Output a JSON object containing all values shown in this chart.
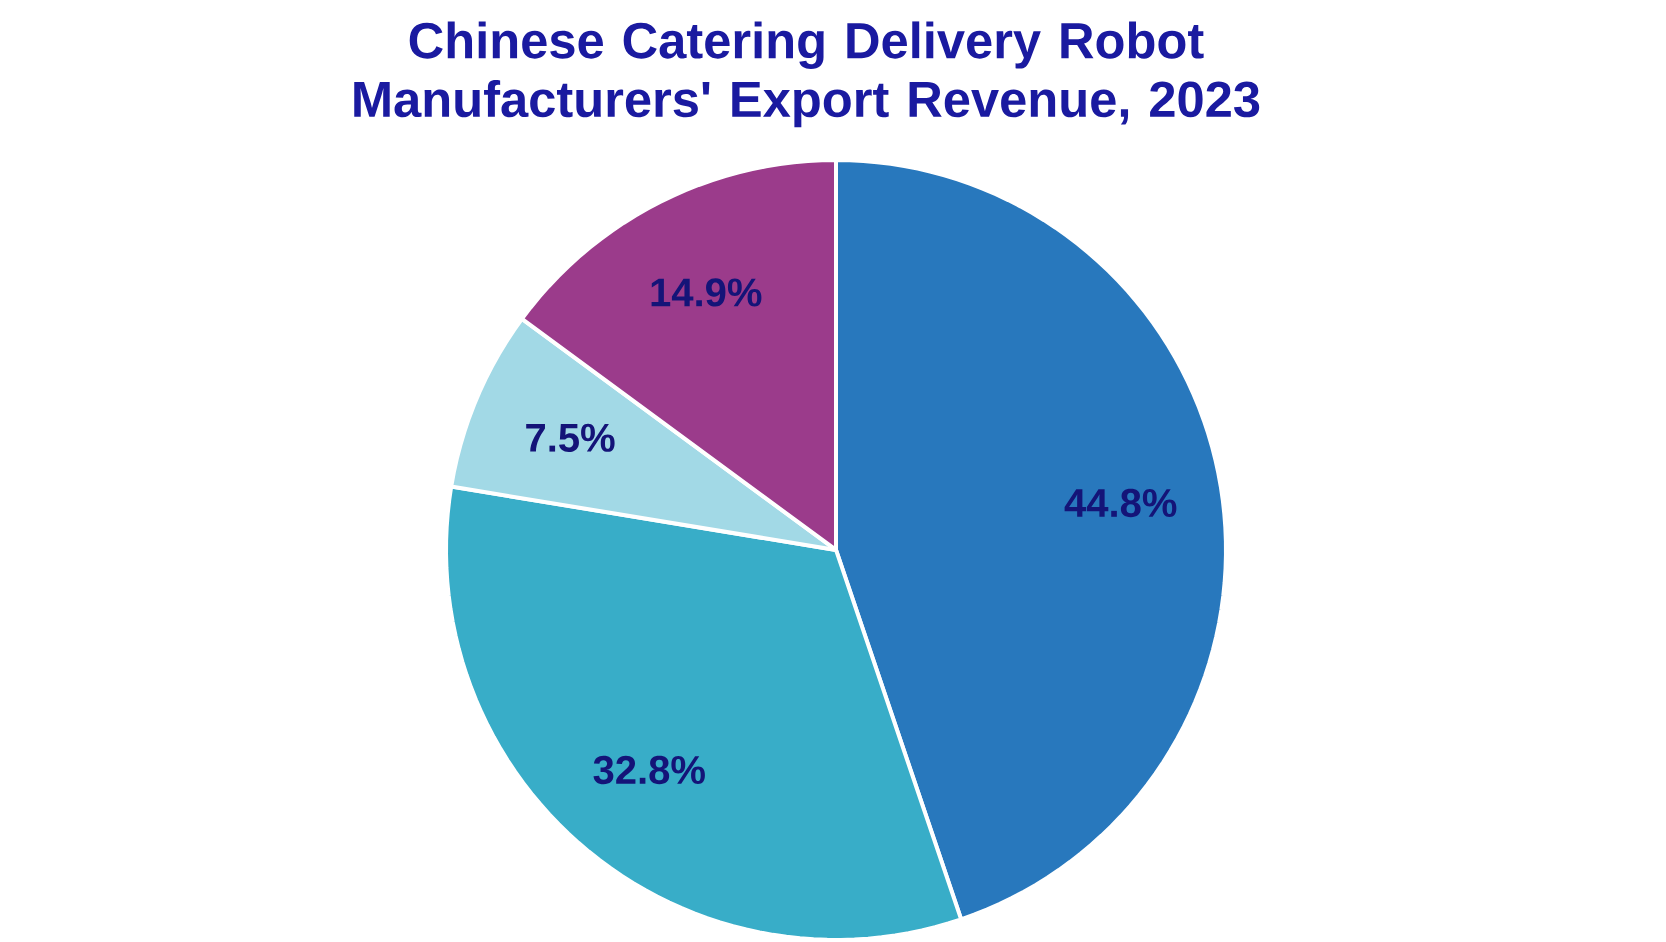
{
  "chart_data": {
    "type": "pie",
    "title": "Chinese Catering Delivery Robot Manufacturers' Export Revenue, 2023",
    "categories": [
      null,
      null,
      null,
      null
    ],
    "values": [
      44.8,
      32.8,
      7.5,
      14.9
    ],
    "colors": [
      "#2878bd",
      "#38adc8",
      "#a2d9e6",
      "#9b3b8b"
    ],
    "value_labels": [
      "44.8%",
      "32.8%",
      "7.5%",
      "14.9%"
    ]
  }
}
